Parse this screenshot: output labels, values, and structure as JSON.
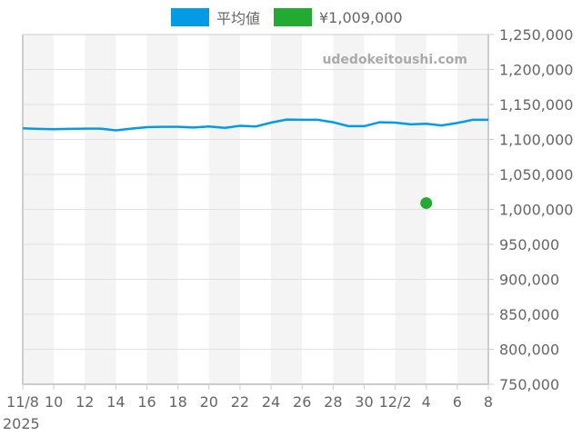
{
  "legend": {
    "items": [
      {
        "label": "平均値",
        "color": "#039be5"
      },
      {
        "label": "¥1,009,000",
        "color": "#22aa33"
      }
    ]
  },
  "watermark": "udedokeitoushi.com",
  "chart_data": {
    "type": "line",
    "title": "",
    "xlabel": "",
    "ylabel": "",
    "ylim": [
      750000,
      1250000
    ],
    "y_ticks": [
      "1,250,000",
      "1,200,000",
      "1,150,000",
      "1,100,000",
      "1,050,000",
      "1,000,000",
      "950,000",
      "900,000",
      "850,000",
      "800,000",
      "750,000"
    ],
    "x_ticks": [
      "11/8",
      "10",
      "12",
      "14",
      "16",
      "18",
      "20",
      "22",
      "24",
      "26",
      "28",
      "30",
      "12/2",
      "4",
      "6",
      "8"
    ],
    "x_year_label": "2025",
    "grid": true,
    "legend_position": "top",
    "x": [
      "11/8",
      "11/9",
      "11/10",
      "11/11",
      "11/12",
      "11/13",
      "11/14",
      "11/15",
      "11/16",
      "11/17",
      "11/18",
      "11/19",
      "11/20",
      "11/21",
      "11/22",
      "11/23",
      "11/24",
      "11/25",
      "11/26",
      "11/27",
      "11/28",
      "11/29",
      "11/30",
      "12/1",
      "12/2",
      "12/3",
      "12/4",
      "12/5",
      "12/6",
      "12/7",
      "12/8"
    ],
    "series": [
      {
        "name": "平均値",
        "color": "#039be5",
        "values": [
          1116000,
          1115000,
          1114500,
          1115000,
          1115500,
          1115500,
          1113000,
          1115500,
          1117500,
          1118000,
          1118000,
          1117000,
          1118500,
          1116500,
          1119500,
          1118500,
          1124000,
          1128500,
          1128000,
          1128000,
          1124500,
          1119000,
          1119000,
          1124500,
          1124000,
          1121500,
          1122500,
          1120000,
          1123500,
          1128000,
          1128000
        ]
      },
      {
        "name": "¥1,009,000",
        "color": "#22aa33",
        "type": "scatter",
        "points": [
          {
            "x": "12/4",
            "y": 1009000
          }
        ]
      }
    ]
  }
}
